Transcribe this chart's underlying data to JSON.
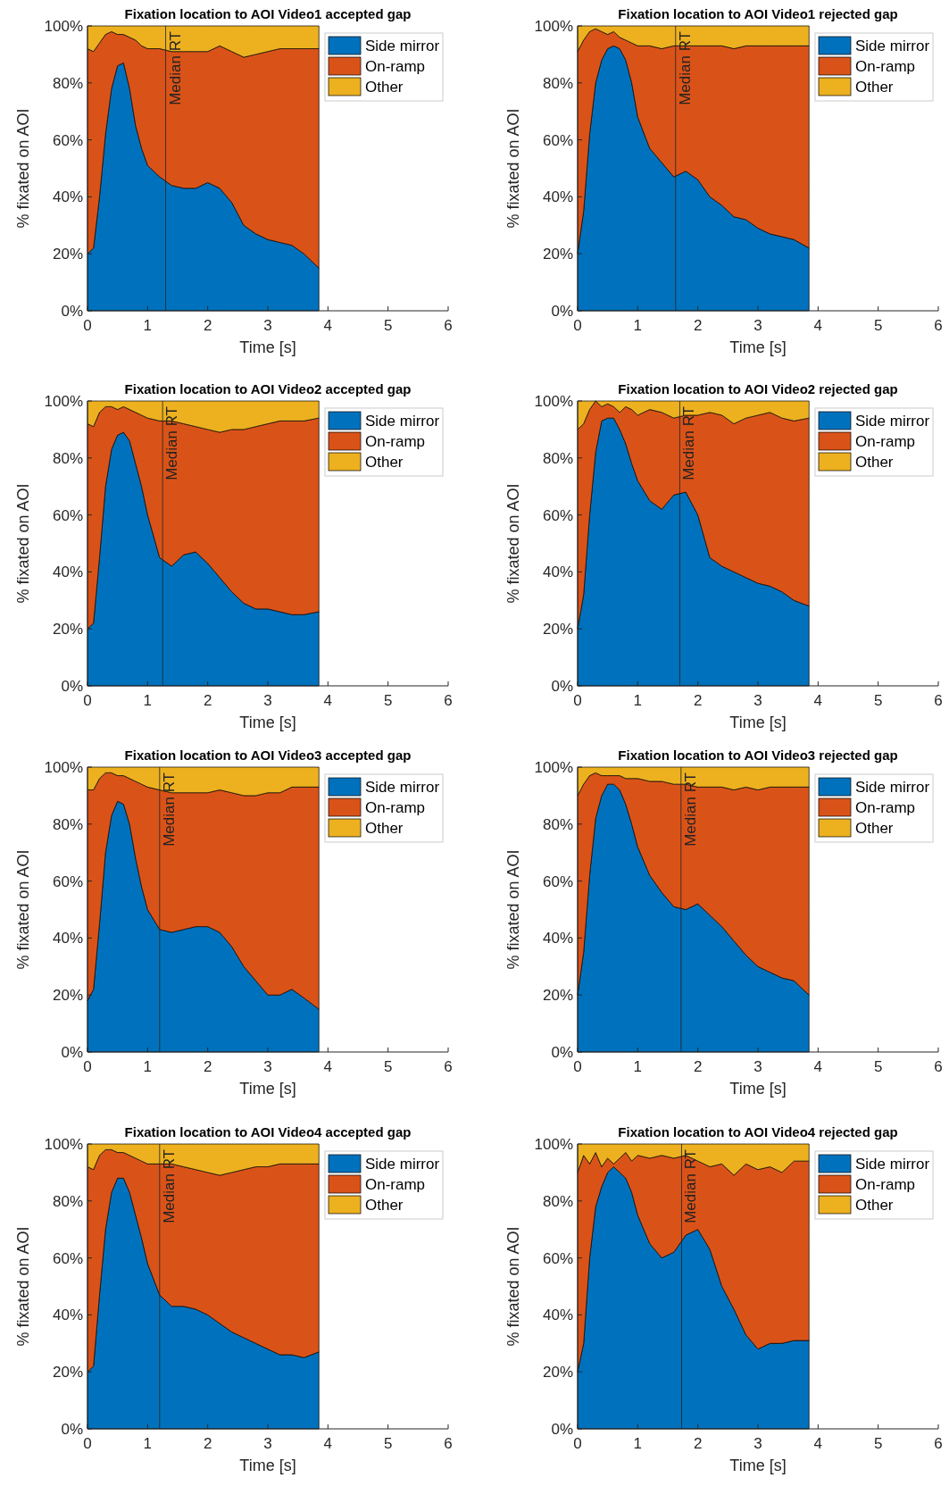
{
  "chart_data": [
    {
      "type": "area",
      "stacked": true,
      "title": "Fixation location to AOI Video1 accepted gap",
      "xlabel": "Time [s]",
      "ylabel": "% fixated on AOI",
      "legend": "top right",
      "xlim": [
        0,
        6
      ],
      "xticks": [
        0,
        1,
        2,
        3,
        4,
        5,
        6
      ],
      "ylim": [
        0,
        100
      ],
      "yticks": [
        {
          "value": 0,
          "label": "0%"
        },
        {
          "value": 20,
          "label": "20%"
        },
        {
          "value": 40,
          "label": "40%"
        },
        {
          "value": 60,
          "label": "60%"
        },
        {
          "value": 80,
          "label": "80%"
        },
        {
          "value": 100,
          "label": "100%"
        }
      ],
      "ref_lines": [
        {
          "axis": "x",
          "value": 1.3,
          "label": "Median RT"
        }
      ],
      "x": [
        0,
        0.1,
        0.2,
        0.3,
        0.4,
        0.5,
        0.6,
        0.7,
        0.8,
        0.9,
        1,
        1.2,
        1.4,
        1.6,
        1.8,
        2,
        2.2,
        2.4,
        2.6,
        2.8,
        3,
        3.2,
        3.4,
        3.6,
        3.85
      ],
      "series": [
        {
          "name": "Side mirror",
          "color": "#0072bd",
          "values": [
            20,
            22,
            40,
            62,
            78,
            86,
            87,
            78,
            65,
            57,
            51,
            47,
            44,
            43,
            43,
            45,
            43,
            38,
            30,
            27,
            25,
            24,
            23,
            20,
            15
          ]
        },
        {
          "name": "On-ramp",
          "color": "#d95319",
          "values": [
            72,
            69,
            54,
            35,
            20,
            11,
            10,
            18,
            30,
            36,
            41,
            45,
            47,
            48,
            48,
            46,
            50,
            53,
            59,
            63,
            66,
            68,
            69,
            72,
            77
          ]
        },
        {
          "name": "Other",
          "color": "#edb120",
          "values": [
            8,
            9,
            6,
            3,
            2,
            3,
            3,
            4,
            5,
            7,
            8,
            8,
            9,
            9,
            9,
            9,
            7,
            9,
            11,
            10,
            9,
            8,
            8,
            8,
            8
          ]
        }
      ]
    },
    {
      "type": "area",
      "stacked": true,
      "title": "Fixation location to AOI Video1 rejected gap",
      "xlabel": "Time [s]",
      "ylabel": "% fixated on AOI",
      "legend": "top right",
      "xlim": [
        0,
        6
      ],
      "xticks": [
        0,
        1,
        2,
        3,
        4,
        5,
        6
      ],
      "ylim": [
        0,
        100
      ],
      "yticks": [
        {
          "value": 0,
          "label": "0%"
        },
        {
          "value": 20,
          "label": "20%"
        },
        {
          "value": 40,
          "label": "40%"
        },
        {
          "value": 60,
          "label": "60%"
        },
        {
          "value": 80,
          "label": "80%"
        },
        {
          "value": 100,
          "label": "100%"
        }
      ],
      "ref_lines": [
        {
          "axis": "x",
          "value": 1.63,
          "label": "Median RT"
        }
      ],
      "x": [
        0,
        0.1,
        0.2,
        0.3,
        0.4,
        0.5,
        0.6,
        0.7,
        0.8,
        0.9,
        1,
        1.2,
        1.4,
        1.6,
        1.8,
        2,
        2.2,
        2.4,
        2.6,
        2.8,
        3,
        3.2,
        3.4,
        3.6,
        3.85
      ],
      "series": [
        {
          "name": "Side mirror",
          "color": "#0072bd",
          "values": [
            20,
            35,
            62,
            80,
            88,
            92,
            93,
            92,
            88,
            80,
            68,
            57,
            52,
            47,
            49,
            46,
            40,
            37,
            33,
            32,
            29,
            27,
            26,
            25,
            22
          ]
        },
        {
          "name": "On-ramp",
          "color": "#d95319",
          "values": [
            71,
            60,
            36,
            19,
            10,
            5,
            5,
            4,
            7,
            14,
            25,
            36,
            40,
            46,
            44,
            47,
            53,
            56,
            59,
            61,
            64,
            66,
            67,
            68,
            71
          ]
        },
        {
          "name": "Other",
          "color": "#edb120",
          "values": [
            9,
            5,
            2,
            1,
            2,
            3,
            2,
            4,
            5,
            6,
            7,
            7,
            8,
            7,
            7,
            7,
            7,
            7,
            8,
            7,
            7,
            7,
            7,
            7,
            7
          ]
        }
      ]
    },
    {
      "type": "area",
      "stacked": true,
      "title": "Fixation location to AOI Video2 accepted gap",
      "xlabel": "Time [s]",
      "ylabel": "% fixated on AOI",
      "legend": "top right",
      "xlim": [
        0,
        6
      ],
      "xticks": [
        0,
        1,
        2,
        3,
        4,
        5,
        6
      ],
      "ylim": [
        0,
        100
      ],
      "yticks": [
        {
          "value": 0,
          "label": "0%"
        },
        {
          "value": 20,
          "label": "20%"
        },
        {
          "value": 40,
          "label": "40%"
        },
        {
          "value": 60,
          "label": "60%"
        },
        {
          "value": 80,
          "label": "80%"
        },
        {
          "value": 100,
          "label": "100%"
        }
      ],
      "ref_lines": [
        {
          "axis": "x",
          "value": 1.25,
          "label": "Median RT"
        }
      ],
      "x": [
        0,
        0.1,
        0.2,
        0.3,
        0.4,
        0.5,
        0.6,
        0.7,
        0.8,
        0.9,
        1,
        1.2,
        1.4,
        1.6,
        1.8,
        2,
        2.2,
        2.4,
        2.6,
        2.8,
        3,
        3.2,
        3.4,
        3.6,
        3.85
      ],
      "series": [
        {
          "name": "Side mirror",
          "color": "#0072bd",
          "values": [
            20,
            22,
            45,
            70,
            83,
            88,
            89,
            86,
            78,
            70,
            60,
            45,
            42,
            46,
            47,
            43,
            38,
            33,
            29,
            27,
            27,
            26,
            25,
            25,
            26
          ]
        },
        {
          "name": "On-ramp",
          "color": "#d95319",
          "values": [
            72,
            69,
            51,
            28,
            15,
            9,
            9,
            11,
            18,
            25,
            34,
            48,
            51,
            46,
            44,
            47,
            51,
            57,
            61,
            64,
            65,
            67,
            68,
            68,
            68
          ]
        },
        {
          "name": "Other",
          "color": "#edb120",
          "values": [
            8,
            9,
            4,
            2,
            2,
            3,
            2,
            3,
            4,
            5,
            6,
            7,
            7,
            8,
            9,
            10,
            11,
            10,
            10,
            9,
            8,
            7,
            7,
            7,
            6
          ]
        }
      ]
    },
    {
      "type": "area",
      "stacked": true,
      "title": "Fixation location to AOI Video2 rejected gap",
      "xlabel": "Time [s]",
      "ylabel": "% fixated on AOI",
      "legend": "top right",
      "xlim": [
        0,
        6
      ],
      "xticks": [
        0,
        1,
        2,
        3,
        4,
        5,
        6
      ],
      "ylim": [
        0,
        100
      ],
      "yticks": [
        {
          "value": 0,
          "label": "0%"
        },
        {
          "value": 20,
          "label": "20%"
        },
        {
          "value": 40,
          "label": "40%"
        },
        {
          "value": 60,
          "label": "60%"
        },
        {
          "value": 80,
          "label": "80%"
        },
        {
          "value": 100,
          "label": "100%"
        }
      ],
      "ref_lines": [
        {
          "axis": "x",
          "value": 1.7,
          "label": "Median RT"
        }
      ],
      "x": [
        0,
        0.1,
        0.2,
        0.3,
        0.4,
        0.5,
        0.6,
        0.7,
        0.8,
        0.9,
        1,
        1.2,
        1.4,
        1.6,
        1.8,
        2,
        2.2,
        2.4,
        2.6,
        2.8,
        3,
        3.2,
        3.4,
        3.6,
        3.85
      ],
      "series": [
        {
          "name": "Side mirror",
          "color": "#0072bd",
          "values": [
            20,
            32,
            60,
            82,
            93,
            94,
            94,
            90,
            85,
            78,
            72,
            65,
            62,
            67,
            68,
            60,
            45,
            42,
            40,
            38,
            36,
            35,
            33,
            30,
            28
          ]
        },
        {
          "name": "On-ramp",
          "color": "#d95319",
          "values": [
            70,
            60,
            37,
            18,
            5,
            5,
            4,
            6,
            13,
            19,
            23,
            32,
            34,
            27,
            27,
            35,
            51,
            53,
            52,
            56,
            59,
            61,
            61,
            63,
            66
          ]
        },
        {
          "name": "Other",
          "color": "#edb120",
          "values": [
            10,
            8,
            3,
            0,
            2,
            1,
            2,
            4,
            2,
            3,
            5,
            3,
            4,
            6,
            5,
            5,
            4,
            5,
            8,
            6,
            5,
            4,
            6,
            7,
            6
          ]
        }
      ]
    },
    {
      "type": "area",
      "stacked": true,
      "title": "Fixation location to AOI Video3 accepted gap",
      "xlabel": "Time [s]",
      "ylabel": "% fixated on AOI",
      "legend": "top right",
      "xlim": [
        0,
        6
      ],
      "xticks": [
        0,
        1,
        2,
        3,
        4,
        5,
        6
      ],
      "ylim": [
        0,
        100
      ],
      "yticks": [
        {
          "value": 0,
          "label": "0%"
        },
        {
          "value": 20,
          "label": "20%"
        },
        {
          "value": 40,
          "label": "40%"
        },
        {
          "value": 60,
          "label": "60%"
        },
        {
          "value": 80,
          "label": "80%"
        },
        {
          "value": 100,
          "label": "100%"
        }
      ],
      "ref_lines": [
        {
          "axis": "x",
          "value": 1.2,
          "label": "Median RT"
        }
      ],
      "x": [
        0,
        0.1,
        0.2,
        0.3,
        0.4,
        0.5,
        0.6,
        0.7,
        0.8,
        0.9,
        1,
        1.2,
        1.4,
        1.6,
        1.8,
        2,
        2.2,
        2.4,
        2.6,
        2.8,
        3,
        3.2,
        3.4,
        3.6,
        3.85
      ],
      "series": [
        {
          "name": "Side mirror",
          "color": "#0072bd",
          "values": [
            18,
            22,
            45,
            70,
            83,
            88,
            87,
            80,
            68,
            58,
            50,
            43,
            42,
            43,
            44,
            44,
            42,
            37,
            30,
            25,
            20,
            20,
            22,
            19,
            15
          ]
        },
        {
          "name": "On-ramp",
          "color": "#d95319",
          "values": [
            74,
            70,
            51,
            28,
            15,
            9,
            10,
            16,
            27,
            36,
            43,
            49,
            49,
            48,
            47,
            47,
            50,
            54,
            60,
            65,
            71,
            71,
            71,
            74,
            78
          ]
        },
        {
          "name": "Other",
          "color": "#edb120",
          "values": [
            8,
            8,
            4,
            2,
            2,
            3,
            3,
            4,
            5,
            6,
            7,
            8,
            9,
            9,
            9,
            9,
            8,
            9,
            10,
            10,
            9,
            9,
            7,
            7,
            7
          ]
        }
      ]
    },
    {
      "type": "area",
      "stacked": true,
      "title": "Fixation location to AOI Video3 rejected gap",
      "xlabel": "Time [s]",
      "ylabel": "% fixated on AOI",
      "legend": "top right",
      "xlim": [
        0,
        6
      ],
      "xticks": [
        0,
        1,
        2,
        3,
        4,
        5,
        6
      ],
      "ylim": [
        0,
        100
      ],
      "yticks": [
        {
          "value": 0,
          "label": "0%"
        },
        {
          "value": 20,
          "label": "20%"
        },
        {
          "value": 40,
          "label": "40%"
        },
        {
          "value": 60,
          "label": "60%"
        },
        {
          "value": 80,
          "label": "80%"
        },
        {
          "value": 100,
          "label": "100%"
        }
      ],
      "ref_lines": [
        {
          "axis": "x",
          "value": 1.72,
          "label": "Median RT"
        }
      ],
      "x": [
        0,
        0.1,
        0.2,
        0.3,
        0.4,
        0.5,
        0.6,
        0.7,
        0.8,
        0.9,
        1,
        1.2,
        1.4,
        1.6,
        1.8,
        2,
        2.2,
        2.4,
        2.6,
        2.8,
        3,
        3.2,
        3.4,
        3.6,
        3.85
      ],
      "series": [
        {
          "name": "Side mirror",
          "color": "#0072bd",
          "values": [
            20,
            35,
            62,
            82,
            90,
            94,
            94,
            92,
            87,
            80,
            72,
            62,
            56,
            51,
            50,
            52,
            48,
            44,
            39,
            34,
            30,
            28,
            26,
            25,
            20
          ]
        },
        {
          "name": "On-ramp",
          "color": "#d95319",
          "values": [
            70,
            59,
            35,
            16,
            7,
            3,
            3,
            5,
            9,
            16,
            24,
            33,
            39,
            43,
            44,
            41,
            45,
            49,
            53,
            59,
            62,
            65,
            67,
            68,
            73
          ]
        },
        {
          "name": "Other",
          "color": "#edb120",
          "values": [
            10,
            6,
            3,
            2,
            3,
            3,
            3,
            3,
            4,
            4,
            4,
            5,
            5,
            6,
            6,
            7,
            7,
            7,
            8,
            7,
            8,
            7,
            7,
            7,
            7
          ]
        }
      ]
    },
    {
      "type": "area",
      "stacked": true,
      "title": "Fixation location to AOI Video4 accepted gap",
      "xlabel": "Time [s]",
      "ylabel": "% fixated on AOI",
      "legend": "top right",
      "xlim": [
        0,
        6
      ],
      "xticks": [
        0,
        1,
        2,
        3,
        4,
        5,
        6
      ],
      "ylim": [
        0,
        100
      ],
      "yticks": [
        {
          "value": 0,
          "label": "0%"
        },
        {
          "value": 20,
          "label": "20%"
        },
        {
          "value": 40,
          "label": "40%"
        },
        {
          "value": 60,
          "label": "60%"
        },
        {
          "value": 80,
          "label": "80%"
        },
        {
          "value": 100,
          "label": "100%"
        }
      ],
      "ref_lines": [
        {
          "axis": "x",
          "value": 1.2,
          "label": "Median RT"
        }
      ],
      "x": [
        0,
        0.1,
        0.2,
        0.3,
        0.4,
        0.5,
        0.6,
        0.7,
        0.8,
        0.9,
        1,
        1.2,
        1.4,
        1.6,
        1.8,
        2,
        2.2,
        2.4,
        2.6,
        2.8,
        3,
        3.2,
        3.4,
        3.6,
        3.85
      ],
      "series": [
        {
          "name": "Side mirror",
          "color": "#0072bd",
          "values": [
            20,
            22,
            47,
            70,
            83,
            88,
            88,
            83,
            75,
            67,
            58,
            47,
            43,
            43,
            42,
            40,
            37,
            34,
            32,
            30,
            28,
            26,
            26,
            25,
            27
          ]
        },
        {
          "name": "On-ramp",
          "color": "#d95319",
          "values": [
            72,
            69,
            49,
            28,
            15,
            9,
            9,
            13,
            20,
            27,
            35,
            46,
            50,
            49,
            49,
            50,
            52,
            56,
            59,
            62,
            64,
            67,
            67,
            68,
            66
          ]
        },
        {
          "name": "Other",
          "color": "#edb120",
          "values": [
            8,
            9,
            4,
            2,
            2,
            3,
            3,
            4,
            5,
            6,
            7,
            7,
            7,
            8,
            9,
            10,
            11,
            10,
            9,
            8,
            8,
            7,
            7,
            7,
            7
          ]
        }
      ]
    },
    {
      "type": "area",
      "stacked": true,
      "title": "Fixation location to AOI Video4 rejected gap",
      "xlabel": "Time [s]",
      "ylabel": "% fixated on AOI",
      "legend": "top right",
      "xlim": [
        0,
        6
      ],
      "xticks": [
        0,
        1,
        2,
        3,
        4,
        5,
        6
      ],
      "ylim": [
        0,
        100
      ],
      "yticks": [
        {
          "value": 0,
          "label": "0%"
        },
        {
          "value": 20,
          "label": "20%"
        },
        {
          "value": 40,
          "label": "40%"
        },
        {
          "value": 60,
          "label": "60%"
        },
        {
          "value": 80,
          "label": "80%"
        },
        {
          "value": 100,
          "label": "100%"
        }
      ],
      "ref_lines": [
        {
          "axis": "x",
          "value": 1.73,
          "label": "Median RT"
        }
      ],
      "x": [
        0,
        0.1,
        0.2,
        0.3,
        0.4,
        0.5,
        0.6,
        0.7,
        0.8,
        0.9,
        1,
        1.2,
        1.4,
        1.6,
        1.8,
        2,
        2.2,
        2.4,
        2.6,
        2.8,
        3,
        3.2,
        3.4,
        3.6,
        3.85
      ],
      "series": [
        {
          "name": "Side mirror",
          "color": "#0072bd",
          "values": [
            20,
            30,
            60,
            78,
            85,
            90,
            92,
            90,
            88,
            83,
            75,
            65,
            60,
            62,
            68,
            70,
            63,
            50,
            42,
            33,
            28,
            30,
            30,
            31,
            31
          ]
        },
        {
          "name": "On-ramp",
          "color": "#d95319",
          "values": [
            70,
            66,
            33,
            19,
            7,
            5,
            1,
            5,
            9,
            11,
            21,
            30,
            36,
            33,
            28,
            24,
            29,
            43,
            47,
            60,
            63,
            62,
            60,
            63,
            63
          ]
        },
        {
          "name": "Other",
          "color": "#edb120",
          "values": [
            10,
            4,
            7,
            3,
            8,
            5,
            7,
            5,
            3,
            6,
            4,
            5,
            4,
            5,
            4,
            6,
            8,
            7,
            11,
            7,
            9,
            8,
            10,
            6,
            6
          ]
        }
      ]
    }
  ]
}
